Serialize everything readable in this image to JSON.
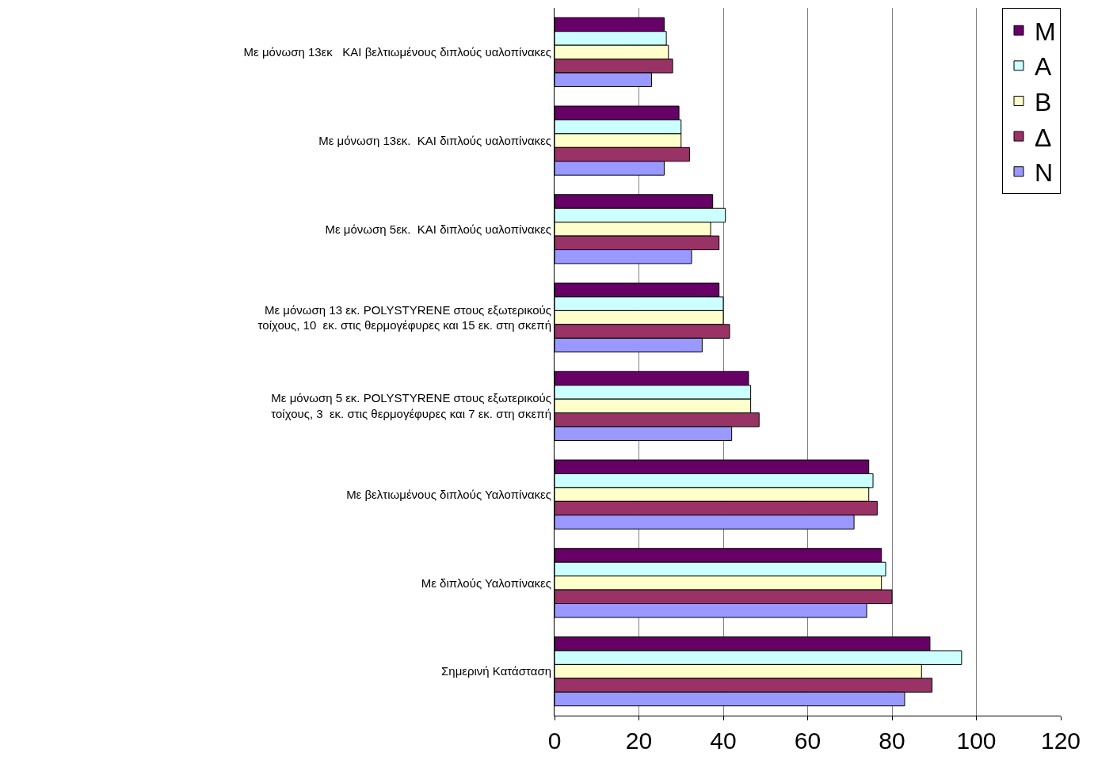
{
  "chart_data": {
    "type": "bar",
    "orientation": "horizontal",
    "categories": [
      "Με μόνωση 13εκ   ΚΑΙ βελτιωμένους διπλούς υαλοπίνακες",
      "Με μόνωση 13εκ.  ΚΑΙ διπλούς υαλοπίνακες",
      "Με μόνωση 5εκ.  ΚΑΙ διπλούς υαλοπίνακες",
      "Με μόνωση 13 εκ. POLYSTYRENE στους εξωτερικούς\nτοίχους, 10  εκ. στις θερμογέφυρες και 15 εκ. στη σκεπή",
      "Με μόνωση 5 εκ. POLYSTYRENE στους εξωτερικούς\nτοίχους, 3  εκ. στις θερμογέφυρες και 7 εκ. στη σκεπή",
      "Με βελτιωμένους διπλούς Υαλοπίνακες",
      "Με διπλούς Υαλοπίνακες",
      "Σημερινή Κατάσταση"
    ],
    "series": [
      {
        "name": "Μ",
        "color": "#660066",
        "values": [
          26,
          29.5,
          37.5,
          39,
          46,
          74.5,
          77.5,
          89
        ]
      },
      {
        "name": "Α",
        "color": "#ccffff",
        "values": [
          26.5,
          30,
          40.5,
          40,
          46.5,
          75.5,
          78.5,
          96.5
        ]
      },
      {
        "name": "Β",
        "color": "#ffffcc",
        "values": [
          27,
          30,
          37,
          40,
          46.5,
          74.5,
          77.5,
          87
        ]
      },
      {
        "name": "Δ",
        "color": "#993366",
        "values": [
          28,
          32,
          39,
          41.5,
          48.5,
          76.5,
          80,
          89.5
        ]
      },
      {
        "name": "Ν",
        "color": "#9999ff",
        "values": [
          23,
          26,
          32.5,
          35,
          42,
          71,
          74,
          83
        ]
      }
    ],
    "xlim": [
      0,
      120
    ],
    "xticks": [
      0,
      20,
      40,
      60,
      80,
      100,
      120
    ],
    "grid": "x",
    "legend": "top right"
  }
}
